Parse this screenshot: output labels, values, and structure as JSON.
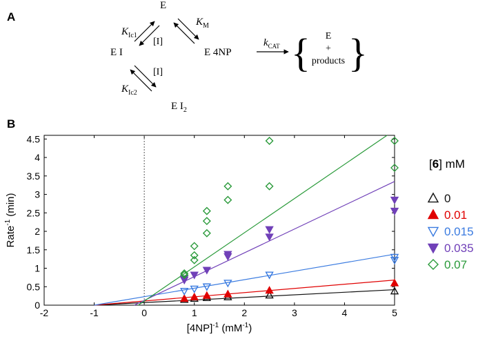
{
  "panel_a": {
    "letter": "A",
    "nodes": {
      "e_top": "E",
      "ei": "E I",
      "e4np": "E 4NP",
      "ei2_base": "E I",
      "ei2_sub": "2"
    },
    "rates": {
      "kic1_base": "K",
      "kic1_sub": "Ic1",
      "km_base": "K",
      "km_sub": "M",
      "kic2_base": "K",
      "kic2_sub": "Ic2",
      "kcat_base": "k",
      "kcat_sub": "CAT"
    },
    "inhibitor_1": "[I]",
    "inhibitor_2": "[I]",
    "products": {
      "e": "E",
      "plus": "+",
      "products": "products"
    }
  },
  "chart_data": {
    "panel_letter": "B",
    "type": "scatter",
    "xlabel_base": "[4NP]",
    "xlabel_sup": "-1",
    "xlabel_unit_base": " (mM",
    "xlabel_unit_sup": "-1",
    "xlabel_unit_end": ")",
    "ylabel_base": "Rate",
    "ylabel_sup": "-1",
    "ylabel_unit": " (min)",
    "xlim": [
      -2,
      5
    ],
    "ylim": [
      0,
      4.6
    ],
    "xticks": [
      -2,
      -1,
      0,
      1,
      2,
      3,
      4,
      5
    ],
    "yticks": [
      0,
      0.5,
      1,
      1.5,
      2,
      2.5,
      3,
      3.5,
      4,
      4.5
    ],
    "ytick_labels": [
      "0",
      "0.5",
      "1",
      "1.5",
      "2",
      "2.5",
      "3",
      "3.5",
      "4",
      "4.5"
    ],
    "vertical_line_x": 0,
    "legend": {
      "title_open": "[",
      "title_num": "6",
      "title_close": "] mM",
      "position": "right"
    },
    "series": [
      {
        "name": "0",
        "marker": "triangle-up-open",
        "color": "#111111",
        "points": [
          [
            0.8,
            0.15
          ],
          [
            1.0,
            0.18
          ],
          [
            1.25,
            0.2
          ],
          [
            1.67,
            0.22
          ],
          [
            2.5,
            0.27
          ],
          [
            5.0,
            0.38
          ]
        ],
        "fit": [
          [
            -1.0,
            0.0
          ],
          [
            5.0,
            0.42
          ]
        ]
      },
      {
        "name": "0.01",
        "marker": "triangle-up-filled",
        "color": "#e00000",
        "points": [
          [
            0.8,
            0.18
          ],
          [
            1.0,
            0.22
          ],
          [
            1.25,
            0.26
          ],
          [
            1.67,
            0.3
          ],
          [
            2.5,
            0.4
          ],
          [
            5.0,
            0.6
          ]
        ],
        "fit": [
          [
            -1.0,
            0.0
          ],
          [
            5.0,
            0.68
          ]
        ]
      },
      {
        "name": "0.015",
        "marker": "triangle-down-open",
        "color": "#3a7be0",
        "points": [
          [
            0.8,
            0.38
          ],
          [
            1.0,
            0.44
          ],
          [
            1.25,
            0.5
          ],
          [
            1.67,
            0.6
          ],
          [
            2.5,
            0.82
          ],
          [
            5.0,
            1.22
          ],
          [
            5.0,
            1.3
          ]
        ],
        "fit": [
          [
            -1.0,
            0.0
          ],
          [
            5.0,
            1.38
          ]
        ]
      },
      {
        "name": "0.035",
        "marker": "triangle-down-filled",
        "color": "#7040b8",
        "points": [
          [
            0.8,
            0.68
          ],
          [
            0.8,
            0.72
          ],
          [
            1.0,
            0.82
          ],
          [
            1.25,
            0.95
          ],
          [
            1.67,
            1.32
          ],
          [
            1.67,
            1.38
          ],
          [
            2.5,
            1.85
          ],
          [
            2.5,
            2.05
          ],
          [
            5.0,
            2.55
          ],
          [
            5.0,
            2.85
          ]
        ],
        "fit": [
          [
            -0.2,
            0.0
          ],
          [
            5.0,
            3.35
          ]
        ]
      },
      {
        "name": "0.07",
        "marker": "diamond-open",
        "color": "#2a9a3a",
        "points": [
          [
            0.8,
            0.82
          ],
          [
            0.8,
            0.86
          ],
          [
            1.0,
            1.22
          ],
          [
            1.0,
            1.35
          ],
          [
            1.0,
            1.6
          ],
          [
            1.25,
            1.95
          ],
          [
            1.25,
            2.28
          ],
          [
            1.25,
            2.55
          ],
          [
            1.67,
            2.85
          ],
          [
            1.67,
            3.22
          ],
          [
            2.5,
            3.22
          ],
          [
            2.5,
            4.45
          ],
          [
            5.0,
            3.72
          ],
          [
            5.0,
            4.45
          ]
        ],
        "fit": [
          [
            -0.12,
            0.0
          ],
          [
            4.85,
            4.6
          ]
        ]
      }
    ]
  }
}
